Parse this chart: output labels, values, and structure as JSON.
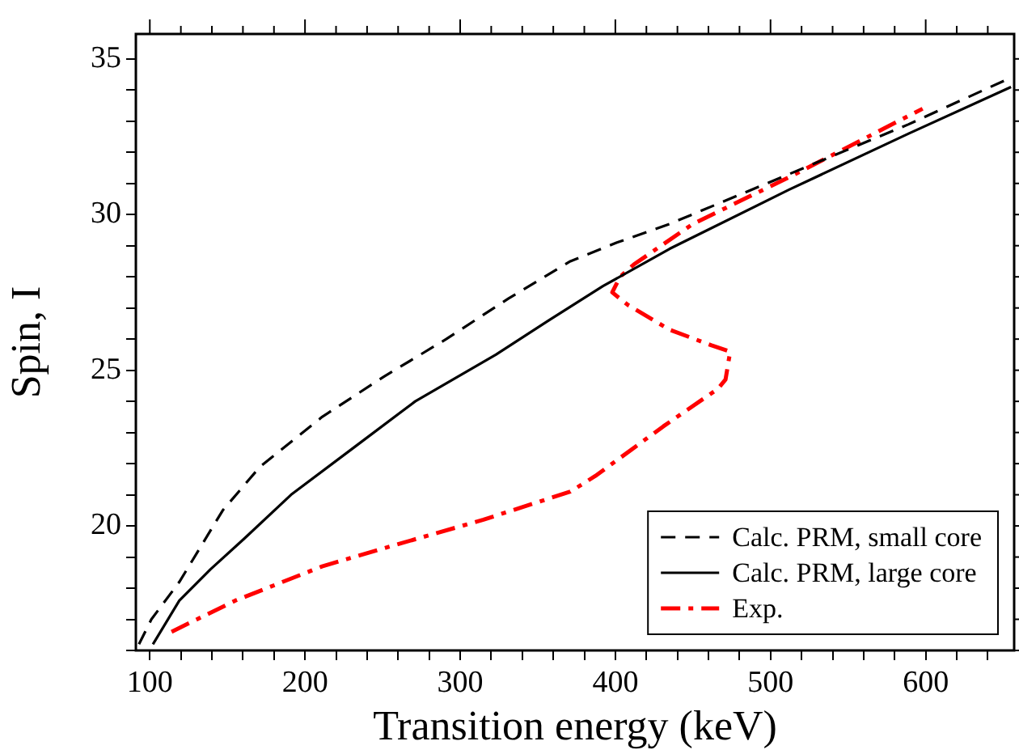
{
  "chart_data": {
    "type": "line",
    "xlabel": "Transition energy (keV)",
    "ylabel": "Spin, I",
    "xlim": [
      91,
      657
    ],
    "ylim": [
      16,
      35.8
    ],
    "xticks": [
      100,
      {
        "value": 120,
        "label": null
      },
      {
        "value": 140,
        "label": null
      },
      {
        "value": 160,
        "label": null
      },
      {
        "value": 180,
        "label": null
      },
      200,
      {
        "value": 220,
        "label": null
      },
      {
        "value": 240,
        "label": null
      },
      {
        "value": 260,
        "label": null
      },
      {
        "value": 280,
        "label": null
      },
      300,
      {
        "value": 320,
        "label": null
      },
      {
        "value": 340,
        "label": null
      },
      {
        "value": 360,
        "label": null
      },
      {
        "value": 380,
        "label": null
      },
      400,
      {
        "value": 420,
        "label": null
      },
      {
        "value": 440,
        "label": null
      },
      {
        "value": 460,
        "label": null
      },
      {
        "value": 480,
        "label": null
      },
      500,
      {
        "value": 520,
        "label": null
      },
      {
        "value": 540,
        "label": null
      },
      {
        "value": 560,
        "label": null
      },
      {
        "value": 580,
        "label": null
      },
      600,
      {
        "value": 620,
        "label": null
      },
      {
        "value": 640,
        "label": null
      }
    ],
    "yticks": [
      {
        "value": 16,
        "label": null
      },
      {
        "value": 17,
        "label": null
      },
      {
        "value": 18,
        "label": null
      },
      {
        "value": 19,
        "label": null
      },
      20,
      {
        "value": 21,
        "label": null
      },
      {
        "value": 22,
        "label": null
      },
      {
        "value": 23,
        "label": null
      },
      {
        "value": 24,
        "label": null
      },
      25,
      {
        "value": 26,
        "label": null
      },
      {
        "value": 27,
        "label": null
      },
      {
        "value": 28,
        "label": null
      },
      {
        "value": 29,
        "label": null
      },
      30,
      {
        "value": 31,
        "label": null
      },
      {
        "value": 32,
        "label": null
      },
      {
        "value": 33,
        "label": null
      },
      {
        "value": 34,
        "label": null
      },
      35
    ],
    "grid": false,
    "legend": "bottom right",
    "marker": "none",
    "series": [
      {
        "name": "Calc. PRM, small core",
        "color": "#000000",
        "line_style": "dashed",
        "x": [
          93,
          101,
          119,
          147,
          171,
          211,
          251,
          291,
          331,
          371,
          401,
          435,
          512,
          589,
          655
        ],
        "values": [
          16.2,
          17,
          18.2,
          20.5,
          21.9,
          23.5,
          24.8,
          26,
          27.3,
          28.5,
          29.1,
          29.7,
          31.3,
          32.9,
          34.4
        ]
      },
      {
        "name": "Calc. PRM, large core",
        "color": "#000000",
        "line_style": "solid",
        "x": [
          102,
          119,
          139,
          161,
          191,
          231,
          271,
          323,
          357,
          392,
          435,
          512,
          589,
          655
        ],
        "values": [
          16.2,
          17.6,
          18.6,
          19.6,
          21,
          22.5,
          24,
          25.5,
          26.6,
          27.7,
          28.9,
          30.8,
          32.6,
          34.1
        ]
      },
      {
        "name": "Exp.",
        "color": "#ff0000",
        "line_style": "dashdot",
        "x": [
          114,
          155,
          211,
          259,
          315,
          371,
          387,
          431,
          466,
          471,
          474,
          462,
          435,
          408,
          398,
          403,
          412,
          450,
          512,
          598
        ],
        "values": [
          16.6,
          17.6,
          18.7,
          19.4,
          20.2,
          21.1,
          21.6,
          23.2,
          24.4,
          24.7,
          25.6,
          25.8,
          26.3,
          27.1,
          27.5,
          28,
          28.4,
          29.7,
          31.2,
          33.4
        ]
      }
    ]
  }
}
